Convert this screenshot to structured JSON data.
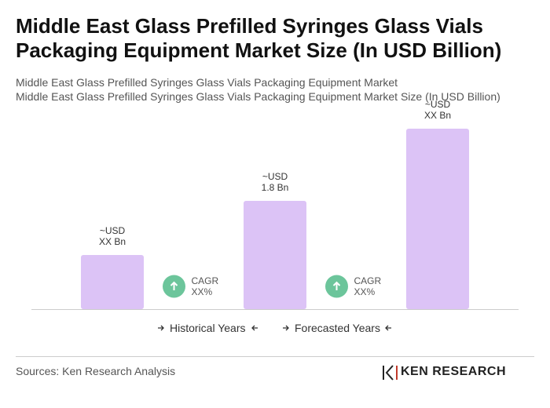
{
  "chart_data": {
    "type": "bar",
    "title": "Middle East Glass Prefilled Syringes Glass Vials Packaging Equipment Market Size (In USD Billion)",
    "subtitle": [
      "Middle East Glass Prefilled Syringes Glass Vials Packaging Equipment Market",
      "Middle East Glass Prefilled Syringes Glass Vials Packaging Equipment Market Size (In USD Billion)"
    ],
    "values": [
      0.9,
      1.8,
      3.0
    ],
    "value_labels": [
      "~USD\nXX Bn",
      "~USD\n1.8 Bn",
      "~USD\nXX Bn"
    ],
    "color": "#dcc3f6",
    "annotations": [
      "CAGR\nXX%",
      "CAGR\nXX%"
    ],
    "legend": [
      "Historical Years",
      "Forecasted Years"
    ]
  },
  "footer": {
    "source": "Sources: Ken Research Analysis",
    "logo": "KEN RESEARCH"
  }
}
